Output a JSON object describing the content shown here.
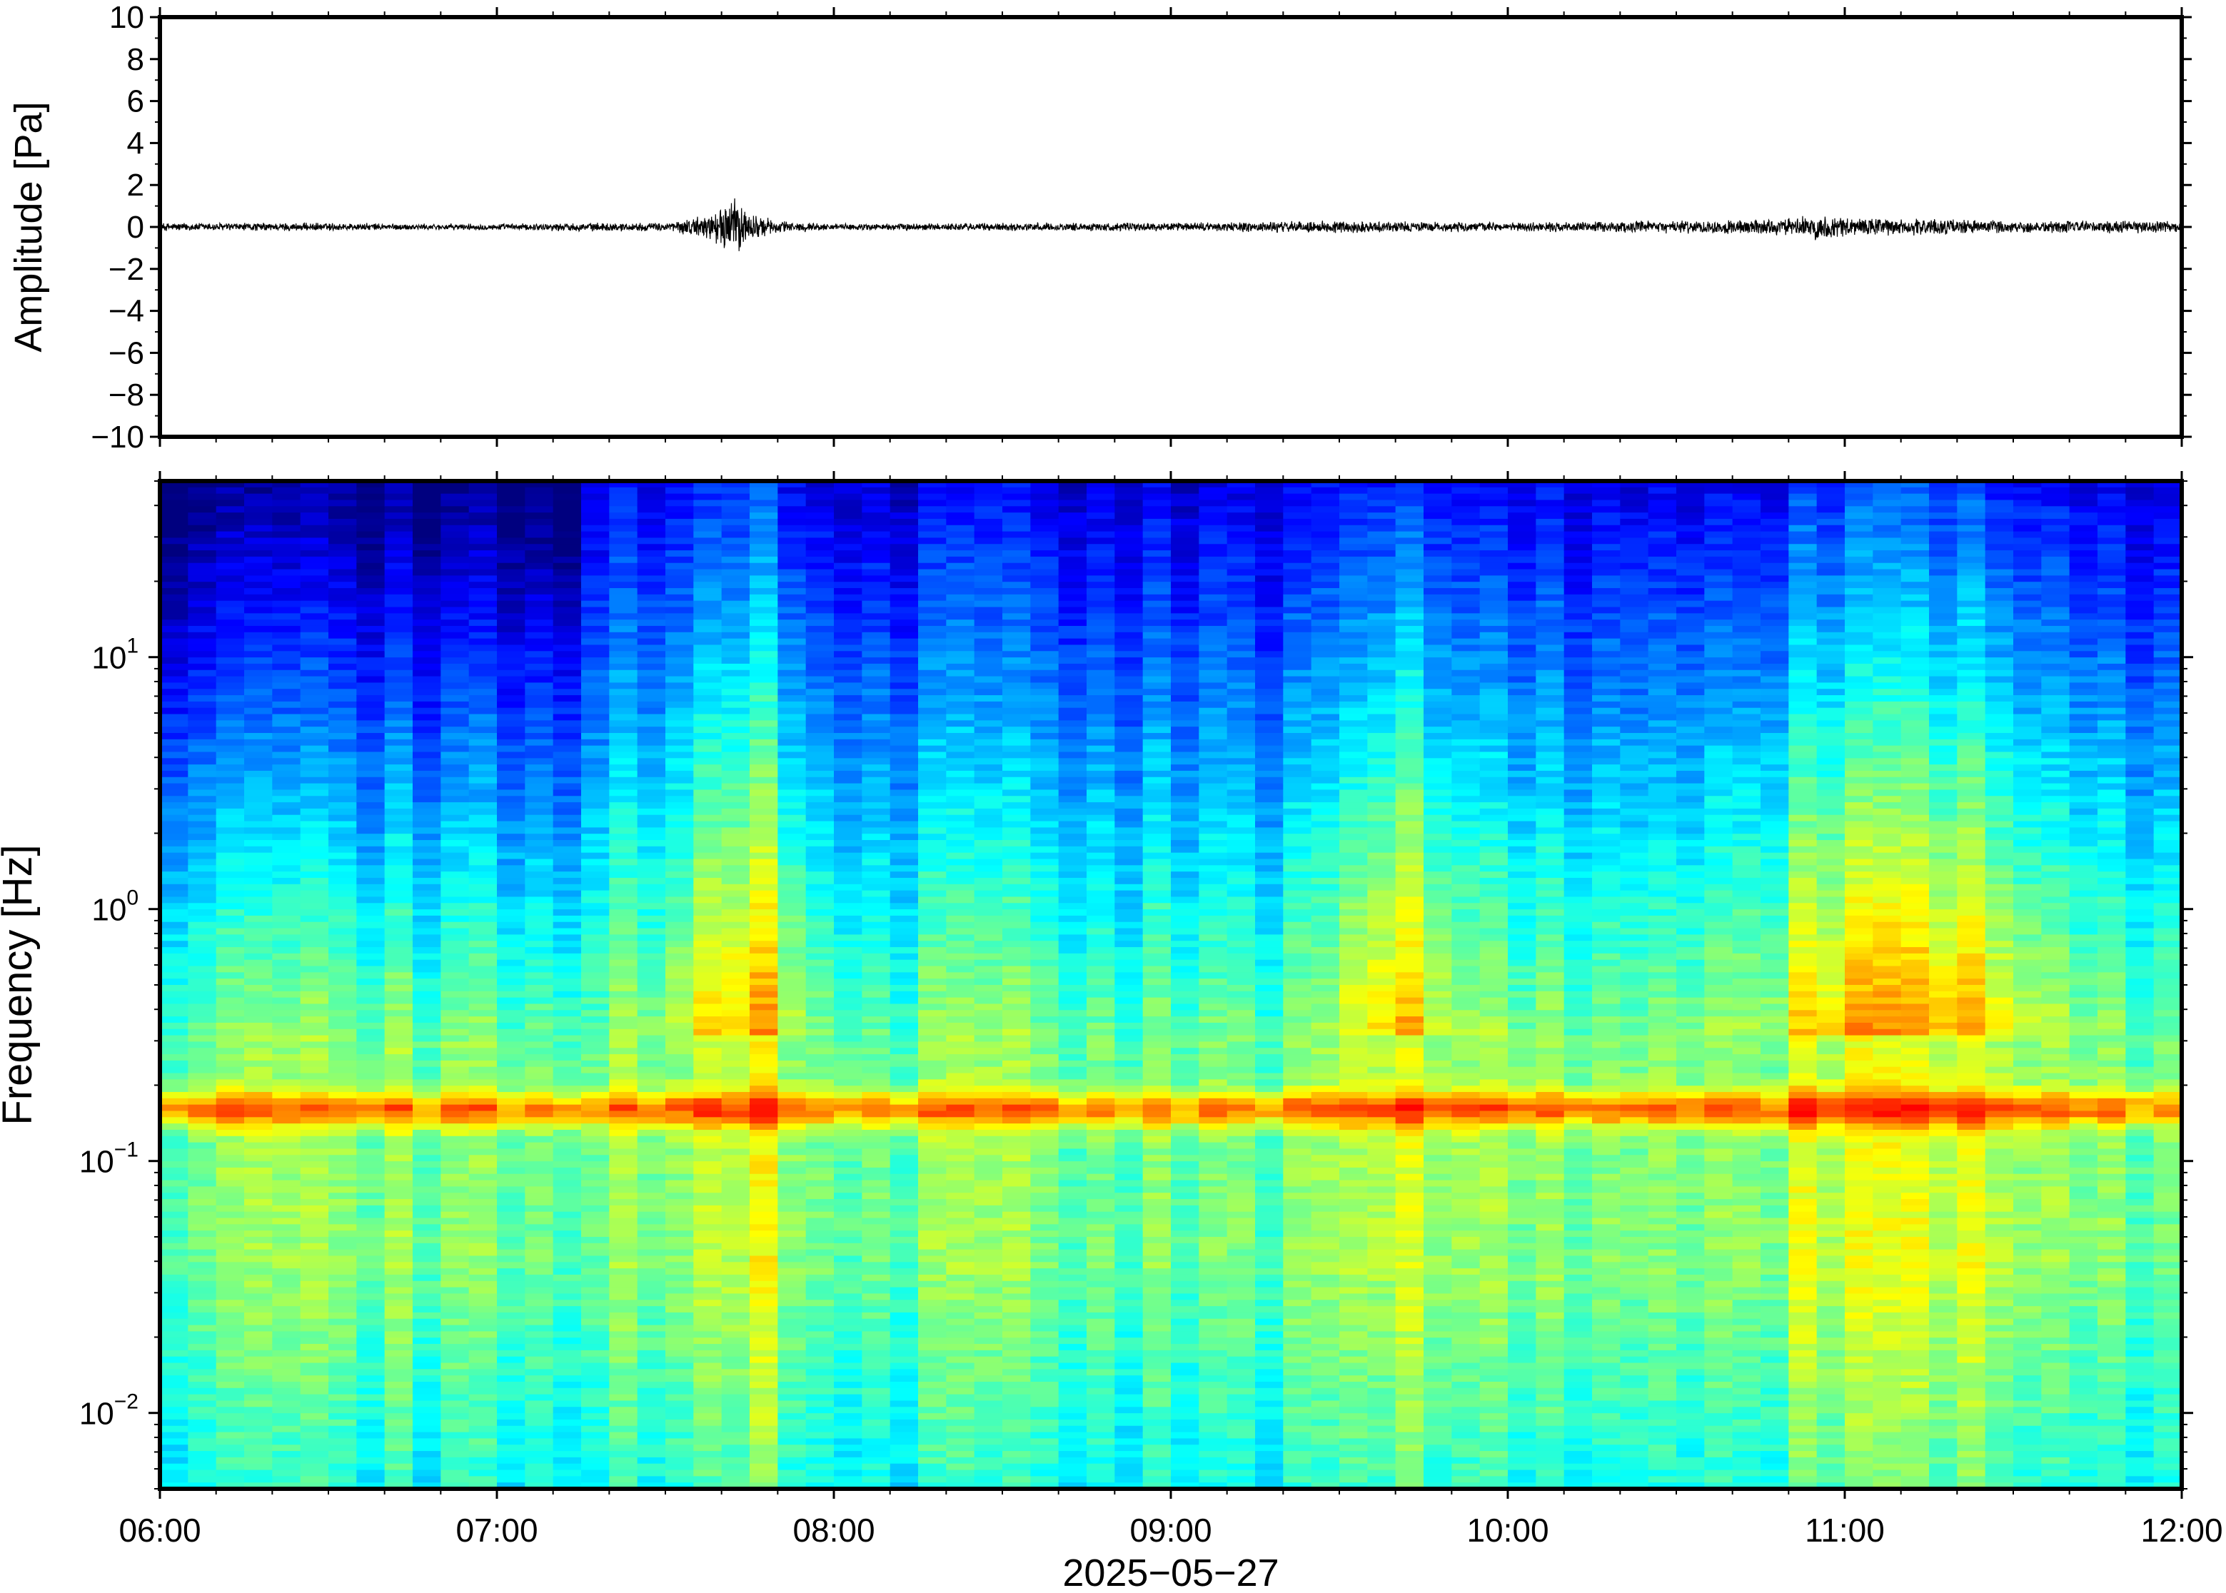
{
  "chart_data": [
    {
      "type": "line",
      "panel": "waveform",
      "ylabel": "Amplitude [Pa]",
      "ylim": [
        -10,
        10
      ],
      "yticks": [
        -10,
        -8,
        -6,
        -4,
        -2,
        0,
        2,
        4,
        6,
        8,
        10
      ],
      "ytick_labels": [
        "−10",
        "−8",
        "−6",
        "−4",
        "−2",
        "0",
        "2",
        "4",
        "6",
        "8",
        "10"
      ],
      "x_range": [
        "06:00",
        "12:00"
      ],
      "series": [
        {
          "color": "#000000",
          "envelope": {
            "x": [
              "06:00",
              "06:15",
              "06:30",
              "06:45",
              "07:00",
              "07:15",
              "07:30",
              "07:36",
              "07:40",
              "07:42",
              "07:44",
              "07:46",
              "07:50",
              "08:00",
              "08:30",
              "09:00",
              "09:30",
              "10:00",
              "10:30",
              "10:50",
              "10:55",
              "11:00",
              "11:10",
              "11:15",
              "11:30",
              "11:50",
              "12:00"
            ],
            "amplitude": [
              0.2,
              0.2,
              0.2,
              0.15,
              0.15,
              0.2,
              0.2,
              0.5,
              0.9,
              1.6,
              1.0,
              0.6,
              0.3,
              0.15,
              0.2,
              0.2,
              0.3,
              0.2,
              0.3,
              0.4,
              0.6,
              0.5,
              0.4,
              0.4,
              0.3,
              0.3,
              0.3
            ]
          }
        }
      ]
    },
    {
      "type": "heatmap",
      "panel": "spectrogram",
      "ylabel": "Frequency [Hz]",
      "yscale": "log",
      "ylim": [
        0.005,
        50
      ],
      "yticks": [
        0.01,
        0.1,
        1,
        10
      ],
      "ytick_labels": [
        [
          "10",
          "−2"
        ],
        [
          "10",
          "−1"
        ],
        [
          "10",
          "0"
        ],
        [
          "10",
          "1"
        ]
      ],
      "xlabel": "2025−05−27",
      "xticks": [
        "06:00",
        "07:00",
        "08:00",
        "09:00",
        "10:00",
        "11:00",
        "12:00"
      ],
      "colormap": [
        "#00007f",
        "#0000ff",
        "#007fff",
        "#00ffff",
        "#7fff7f",
        "#ffff00",
        "#ff7f00",
        "#ff0000"
      ],
      "microseism_band_hz": 0.16,
      "energetic_bursts": [
        {
          "start": "07:35",
          "end": "07:50"
        },
        {
          "start": "09:35",
          "end": "09:45"
        },
        {
          "start": "10:50",
          "end": "11:30"
        }
      ]
    }
  ]
}
